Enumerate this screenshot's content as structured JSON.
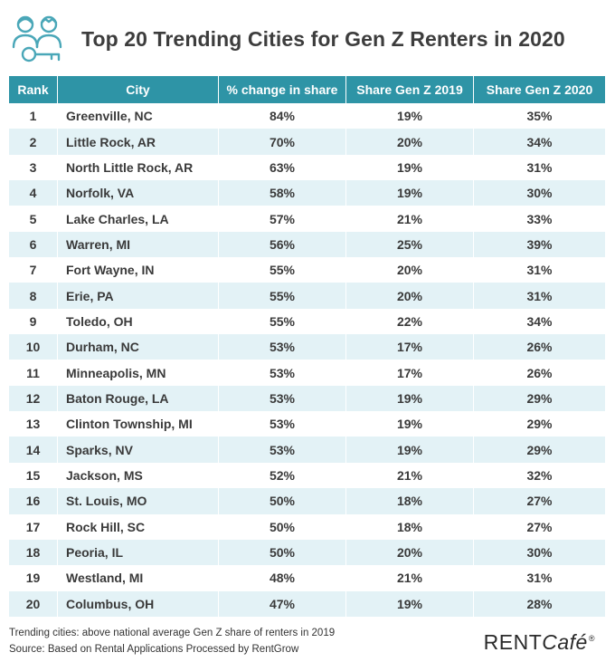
{
  "header": {
    "title": "Top 20 Trending Cities for Gen Z Renters in 2020",
    "icon": "renters-key-icon",
    "icon_color": "#4aa7b8"
  },
  "colors": {
    "header_bg": "#2e94a6",
    "stripe_bg": "#e3f2f6"
  },
  "chart_data": {
    "type": "table",
    "title": "Top 20 Trending Cities for Gen Z Renters in 2020",
    "columns": [
      "Rank",
      "City",
      "% change in share",
      "Share Gen Z 2019",
      "Share Gen Z 2020"
    ],
    "rows": [
      [
        "1",
        "Greenville, NC",
        "84%",
        "19%",
        "35%"
      ],
      [
        "2",
        "Little Rock, AR",
        "70%",
        "20%",
        "34%"
      ],
      [
        "3",
        "North Little Rock, AR",
        "63%",
        "19%",
        "31%"
      ],
      [
        "4",
        "Norfolk, VA",
        "58%",
        "19%",
        "30%"
      ],
      [
        "5",
        "Lake Charles, LA",
        "57%",
        "21%",
        "33%"
      ],
      [
        "6",
        "Warren, MI",
        "56%",
        "25%",
        "39%"
      ],
      [
        "7",
        "Fort Wayne, IN",
        "55%",
        "20%",
        "31%"
      ],
      [
        "8",
        "Erie, PA",
        "55%",
        "20%",
        "31%"
      ],
      [
        "9",
        "Toledo, OH",
        "55%",
        "22%",
        "34%"
      ],
      [
        "10",
        "Durham, NC",
        "53%",
        "17%",
        "26%"
      ],
      [
        "11",
        "Minneapolis, MN",
        "53%",
        "17%",
        "26%"
      ],
      [
        "12",
        "Baton Rouge, LA",
        "53%",
        "19%",
        "29%"
      ],
      [
        "13",
        "Clinton Township, MI",
        "53%",
        "19%",
        "29%"
      ],
      [
        "14",
        "Sparks, NV",
        "53%",
        "19%",
        "29%"
      ],
      [
        "15",
        "Jackson, MS",
        "52%",
        "21%",
        "32%"
      ],
      [
        "16",
        "St. Louis, MO",
        "50%",
        "18%",
        "27%"
      ],
      [
        "17",
        "Rock Hill, SC",
        "50%",
        "18%",
        "27%"
      ],
      [
        "18",
        "Peoria, IL",
        "50%",
        "20%",
        "30%"
      ],
      [
        "19",
        "Westland, MI",
        "48%",
        "21%",
        "31%"
      ],
      [
        "20",
        "Columbus, OH",
        "47%",
        "19%",
        "28%"
      ]
    ]
  },
  "footer": {
    "note": "Trending cities: above national average Gen Z share of renters in 2019",
    "source": "Source: Based on Rental Applications Processed by RentGrow"
  },
  "brand": {
    "name_part1": "RENT",
    "name_part2": "Café",
    "mark": "®"
  }
}
